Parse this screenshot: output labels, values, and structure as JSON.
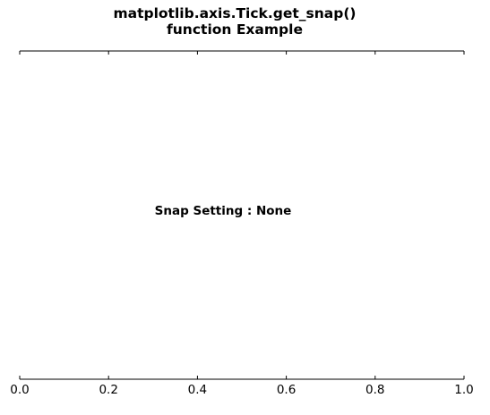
{
  "chart_data": {
    "type": "line",
    "title_lines": [
      "matplotlib.axis.Tick.get_snap()",
      "function Example"
    ],
    "annotation": "Snap Setting : None",
    "xlim": [
      0.0,
      1.0
    ],
    "xticks": [
      0.0,
      0.2,
      0.4,
      0.6,
      0.8,
      1.0
    ],
    "xtick_labels": [
      "0.0",
      "0.2",
      "0.4",
      "0.6",
      "0.8",
      "1.0"
    ],
    "series": [],
    "grid": false,
    "visible_spines": [
      "top",
      "bottom"
    ],
    "tick_direction": "in"
  }
}
